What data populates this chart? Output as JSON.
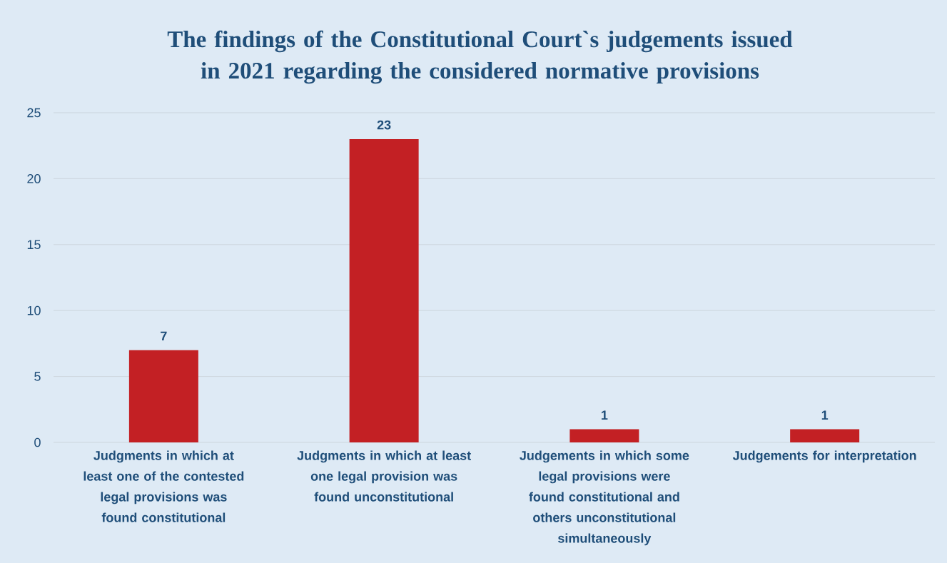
{
  "chart_data": {
    "type": "bar",
    "title": "The findings of the Constitutional Court`s judgements issued in 2021 regarding the considered normative provisions",
    "categories": [
      "Judgments in which at least one of the contested legal provisions was found constitutional",
      "Judgments in which at least one legal provision was found unconstitutional",
      "Judgements in which some legal provisions were found constitutional and others unconstitutional simultaneously",
      "Judgements for interpretation"
    ],
    "values": [
      7,
      23,
      1,
      1
    ],
    "color": "#c32024",
    "ylim": [
      0,
      25
    ],
    "yticks": [
      0,
      5,
      10,
      15,
      20,
      25
    ],
    "grid": "y",
    "data_labels": true
  }
}
